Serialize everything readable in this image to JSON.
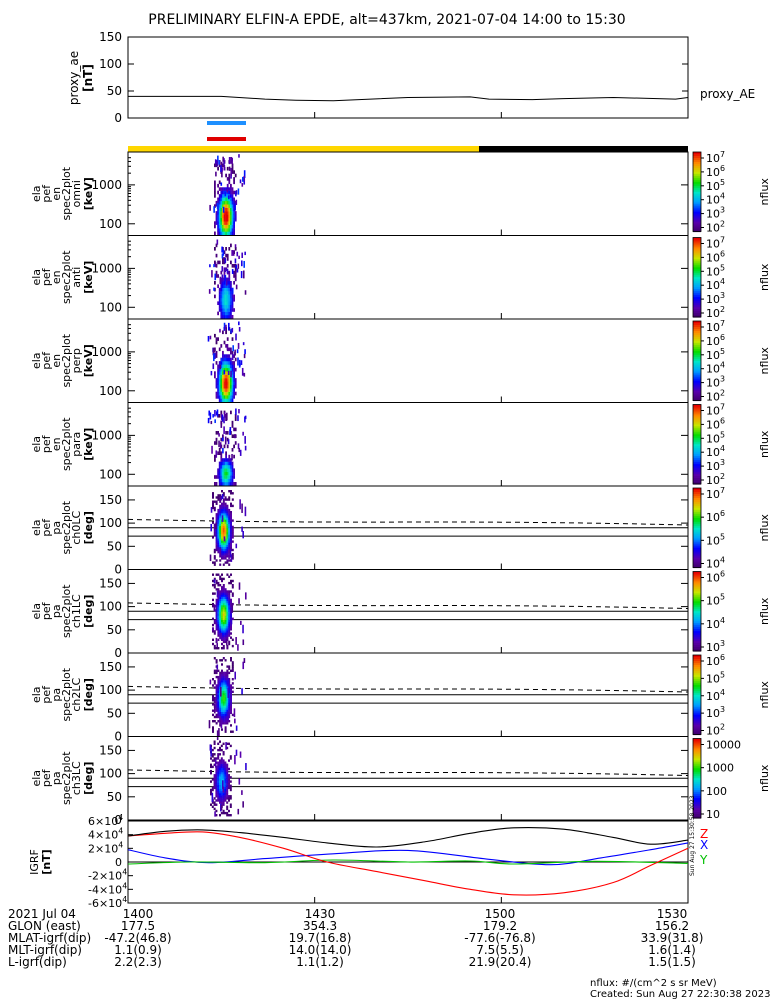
{
  "title": "PRELIMINARY ELFIN-A EPDE, alt=437km, 2021-07-04 14:00 to 15:30",
  "colors": {
    "science_bar": "#ffd700",
    "night_bar": "#000000",
    "blue_marker": "#1e90ff",
    "red_marker": "#e00000",
    "bx": "#0000ff",
    "by": "#00c000",
    "bz": "#ff0000",
    "btot": "#000000"
  },
  "labels": {
    "proxy_ae_left": "proxy_ae",
    "proxy_ae_unit": "[nT]",
    "proxy_ae_right": "proxy_AE",
    "nflux": "nflux",
    "igrf_label": "IGRF",
    "igrf_unit": "[nT]",
    "component_x": "X",
    "component_y": "Y",
    "component_z": "Z",
    "created_vertical": "Sun Aug 27 15:30:58 2023",
    "footer_units": "nflux: #/(cm^2 s sr MeV)",
    "footer_created": "Created: Sun Aug 27 22:30:38 2023"
  },
  "panels": [
    {
      "id": "omni",
      "lines": [
        "ela",
        "pef",
        "en",
        "spec2plot",
        "omni",
        "[keV]"
      ],
      "kind": "energy"
    },
    {
      "id": "anti",
      "lines": [
        "ela",
        "pef",
        "en",
        "spec2plot",
        "anti",
        "[keV]"
      ],
      "kind": "energy"
    },
    {
      "id": "perp",
      "lines": [
        "ela",
        "pef",
        "en",
        "spec2plot",
        "perp",
        "[keV]"
      ],
      "kind": "energy"
    },
    {
      "id": "para",
      "lines": [
        "ela",
        "pef",
        "en",
        "spec2plot",
        "para",
        "[keV]"
      ],
      "kind": "energy"
    },
    {
      "id": "ch0",
      "lines": [
        "ela",
        "pef",
        "pa",
        "spec2plot",
        "ch0LC",
        "[deg]"
      ],
      "kind": "pa"
    },
    {
      "id": "ch1",
      "lines": [
        "ela",
        "pef",
        "pa",
        "spec2plot",
        "ch1LC",
        "[deg]"
      ],
      "kind": "pa"
    },
    {
      "id": "ch2",
      "lines": [
        "ela",
        "pef",
        "pa",
        "spec2plot",
        "ch2LC",
        "[deg]"
      ],
      "kind": "pa"
    },
    {
      "id": "ch3",
      "lines": [
        "ela",
        "pef",
        "pa",
        "spec2plot",
        "ch3LC",
        "[deg]"
      ],
      "kind": "pa"
    }
  ],
  "colorbars": [
    {
      "ticks": [
        "10^7",
        "10^6",
        "10^5",
        "10^4",
        "10^3",
        "10^2"
      ]
    },
    {
      "ticks": [
        "10^7",
        "10^6",
        "10^5",
        "10^4",
        "10^3",
        "10^2"
      ]
    },
    {
      "ticks": [
        "10^7",
        "10^6",
        "10^5",
        "10^4",
        "10^3",
        "10^2"
      ]
    },
    {
      "ticks": [
        "10^7",
        "10^6",
        "10^5",
        "10^4",
        "10^3",
        "10^2"
      ]
    },
    {
      "ticks": [
        "10^7",
        "10^6",
        "10^5",
        "10^4"
      ]
    },
    {
      "ticks": [
        "10^6",
        "10^5",
        "10^4",
        "10^3"
      ]
    },
    {
      "ticks": [
        "10^6",
        "10^5",
        "10^4",
        "10^3",
        "10^2"
      ]
    },
    {
      "ticks": [
        "10000",
        "1000",
        "100",
        "10"
      ]
    }
  ],
  "footer": {
    "rows": [
      {
        "label": "2021 Jul 04",
        "values": [
          "1400",
          "1430",
          "1500",
          "1530"
        ]
      },
      {
        "label": "GLON (east)",
        "values": [
          "177.5",
          "354.3",
          "179.2",
          "156.2"
        ]
      },
      {
        "label": "MLAT-igrf(dip)",
        "values": [
          "-47.2(46.8)",
          "19.7(16.8)",
          "-77.6(-76.8)",
          "33.9(31.8)"
        ]
      },
      {
        "label": "MLT-igrf(dip)",
        "values": [
          "1.1(0.9)",
          "14.0(14.0)",
          "7.5(5.5)",
          "1.6(1.4)"
        ]
      },
      {
        "label": "L-igrf(dip)",
        "values": [
          "2.2(2.3)",
          "1.1(1.2)",
          "21.9(20.4)",
          "1.5(1.5)"
        ]
      }
    ]
  },
  "chart_data": [
    {
      "type": "line",
      "title": "proxy_ae",
      "ylabel": "proxy_ae [nT]",
      "ylim": [
        0,
        150
      ],
      "yticks": [
        0,
        50,
        100,
        150
      ],
      "series": [
        {
          "name": "proxy_AE",
          "x": [
            "14:00",
            "14:08",
            "14:15",
            "14:22",
            "14:27",
            "14:33",
            "14:45",
            "14:55",
            "14:58",
            "15:05",
            "15:10",
            "15:18",
            "15:28",
            "15:30"
          ],
          "y": [
            40,
            40,
            40,
            35,
            33,
            32,
            38,
            39,
            35,
            34,
            36,
            38,
            35,
            38
          ]
        }
      ]
    },
    {
      "type": "heatmap",
      "title": "omni",
      "ylabel": "[keV]",
      "scale": "log",
      "yticks": [
        100,
        1000
      ],
      "x_range": [
        "14:10",
        "14:13"
      ],
      "zlim": [
        100,
        10000000
      ]
    },
    {
      "type": "heatmap",
      "title": "anti",
      "ylabel": "[keV]",
      "scale": "log",
      "yticks": [
        100,
        1000
      ],
      "x_range": [
        "14:10",
        "14:13"
      ],
      "zlim": [
        100,
        10000000
      ]
    },
    {
      "type": "heatmap",
      "title": "perp",
      "ylabel": "[keV]",
      "scale": "log",
      "yticks": [
        100,
        1000
      ],
      "x_range": [
        "14:10",
        "14:13"
      ],
      "zlim": [
        100,
        10000000
      ]
    },
    {
      "type": "heatmap",
      "title": "para",
      "ylabel": "[keV]",
      "scale": "log",
      "yticks": [
        100,
        1000
      ],
      "x_range": [
        "14:10",
        "14:13"
      ],
      "zlim": [
        100,
        10000000
      ]
    },
    {
      "type": "heatmap",
      "title": "ch0LC",
      "ylabel": "[deg]",
      "ylim": [
        0,
        180
      ],
      "yticks": [
        0,
        50,
        100,
        150
      ],
      "x_range": [
        "14:10",
        "14:13"
      ],
      "zlim": [
        10000,
        10000000
      ]
    },
    {
      "type": "heatmap",
      "title": "ch1LC",
      "ylabel": "[deg]",
      "ylim": [
        0,
        180
      ],
      "yticks": [
        0,
        50,
        100,
        150
      ],
      "x_range": [
        "14:10",
        "14:13"
      ],
      "zlim": [
        1000,
        1000000
      ]
    },
    {
      "type": "heatmap",
      "title": "ch2LC",
      "ylabel": "[deg]",
      "ylim": [
        0,
        180
      ],
      "yticks": [
        0,
        50,
        100,
        150
      ],
      "x_range": [
        "14:10",
        "14:13"
      ],
      "zlim": [
        100,
        1000000
      ]
    },
    {
      "type": "heatmap",
      "title": "ch3LC",
      "ylabel": "[deg]",
      "ylim": [
        0,
        180
      ],
      "yticks": [
        0,
        50,
        100,
        150
      ],
      "x_range": [
        "14:10",
        "14:13"
      ],
      "zlim": [
        10,
        10000
      ]
    },
    {
      "type": "line",
      "title": "IGRF",
      "ylabel": "IGRF [nT]",
      "ylim": [
        -60000,
        60000
      ],
      "yticks": [
        -60000,
        -40000,
        -20000,
        0,
        20000,
        40000,
        60000
      ],
      "ytick_labels": [
        "-6×10^4",
        "-4×10^4",
        "-2×10^4",
        "0",
        "2×10^4",
        "4×10^4",
        "6×10^4"
      ],
      "series": [
        {
          "name": "X",
          "color": "#0000ff",
          "x": [
            0,
            6,
            13,
            22,
            33,
            45,
            58,
            68,
            76,
            84,
            90
          ],
          "y": [
            18000,
            6000,
            -1000,
            5000,
            12000,
            17000,
            4000,
            -4000,
            6000,
            18000,
            28000
          ]
        },
        {
          "name": "Y",
          "color": "#00c000",
          "x": [
            0,
            10,
            22,
            33,
            45,
            55,
            62,
            75,
            90
          ],
          "y": [
            -3000,
            0,
            -1000,
            3000,
            0,
            1500,
            -3000,
            1000,
            -2000
          ]
        },
        {
          "name": "Z",
          "color": "#ff0000",
          "x": [
            0,
            6,
            12,
            18,
            25,
            32,
            40,
            48,
            55,
            62,
            70,
            78,
            84,
            90
          ],
          "y": [
            38000,
            42000,
            44000,
            36000,
            20000,
            0,
            -14000,
            -28000,
            -40000,
            -48000,
            -45000,
            -30000,
            -5000,
            20000
          ]
        },
        {
          "name": "|B|",
          "color": "#000000",
          "x": [
            0,
            6,
            12,
            18,
            25,
            32,
            40,
            48,
            55,
            62,
            70,
            78,
            84,
            90
          ],
          "y": [
            38000,
            45000,
            47000,
            43000,
            36000,
            28000,
            22000,
            30000,
            42000,
            50000,
            48000,
            36000,
            26000,
            32000
          ]
        }
      ]
    }
  ]
}
